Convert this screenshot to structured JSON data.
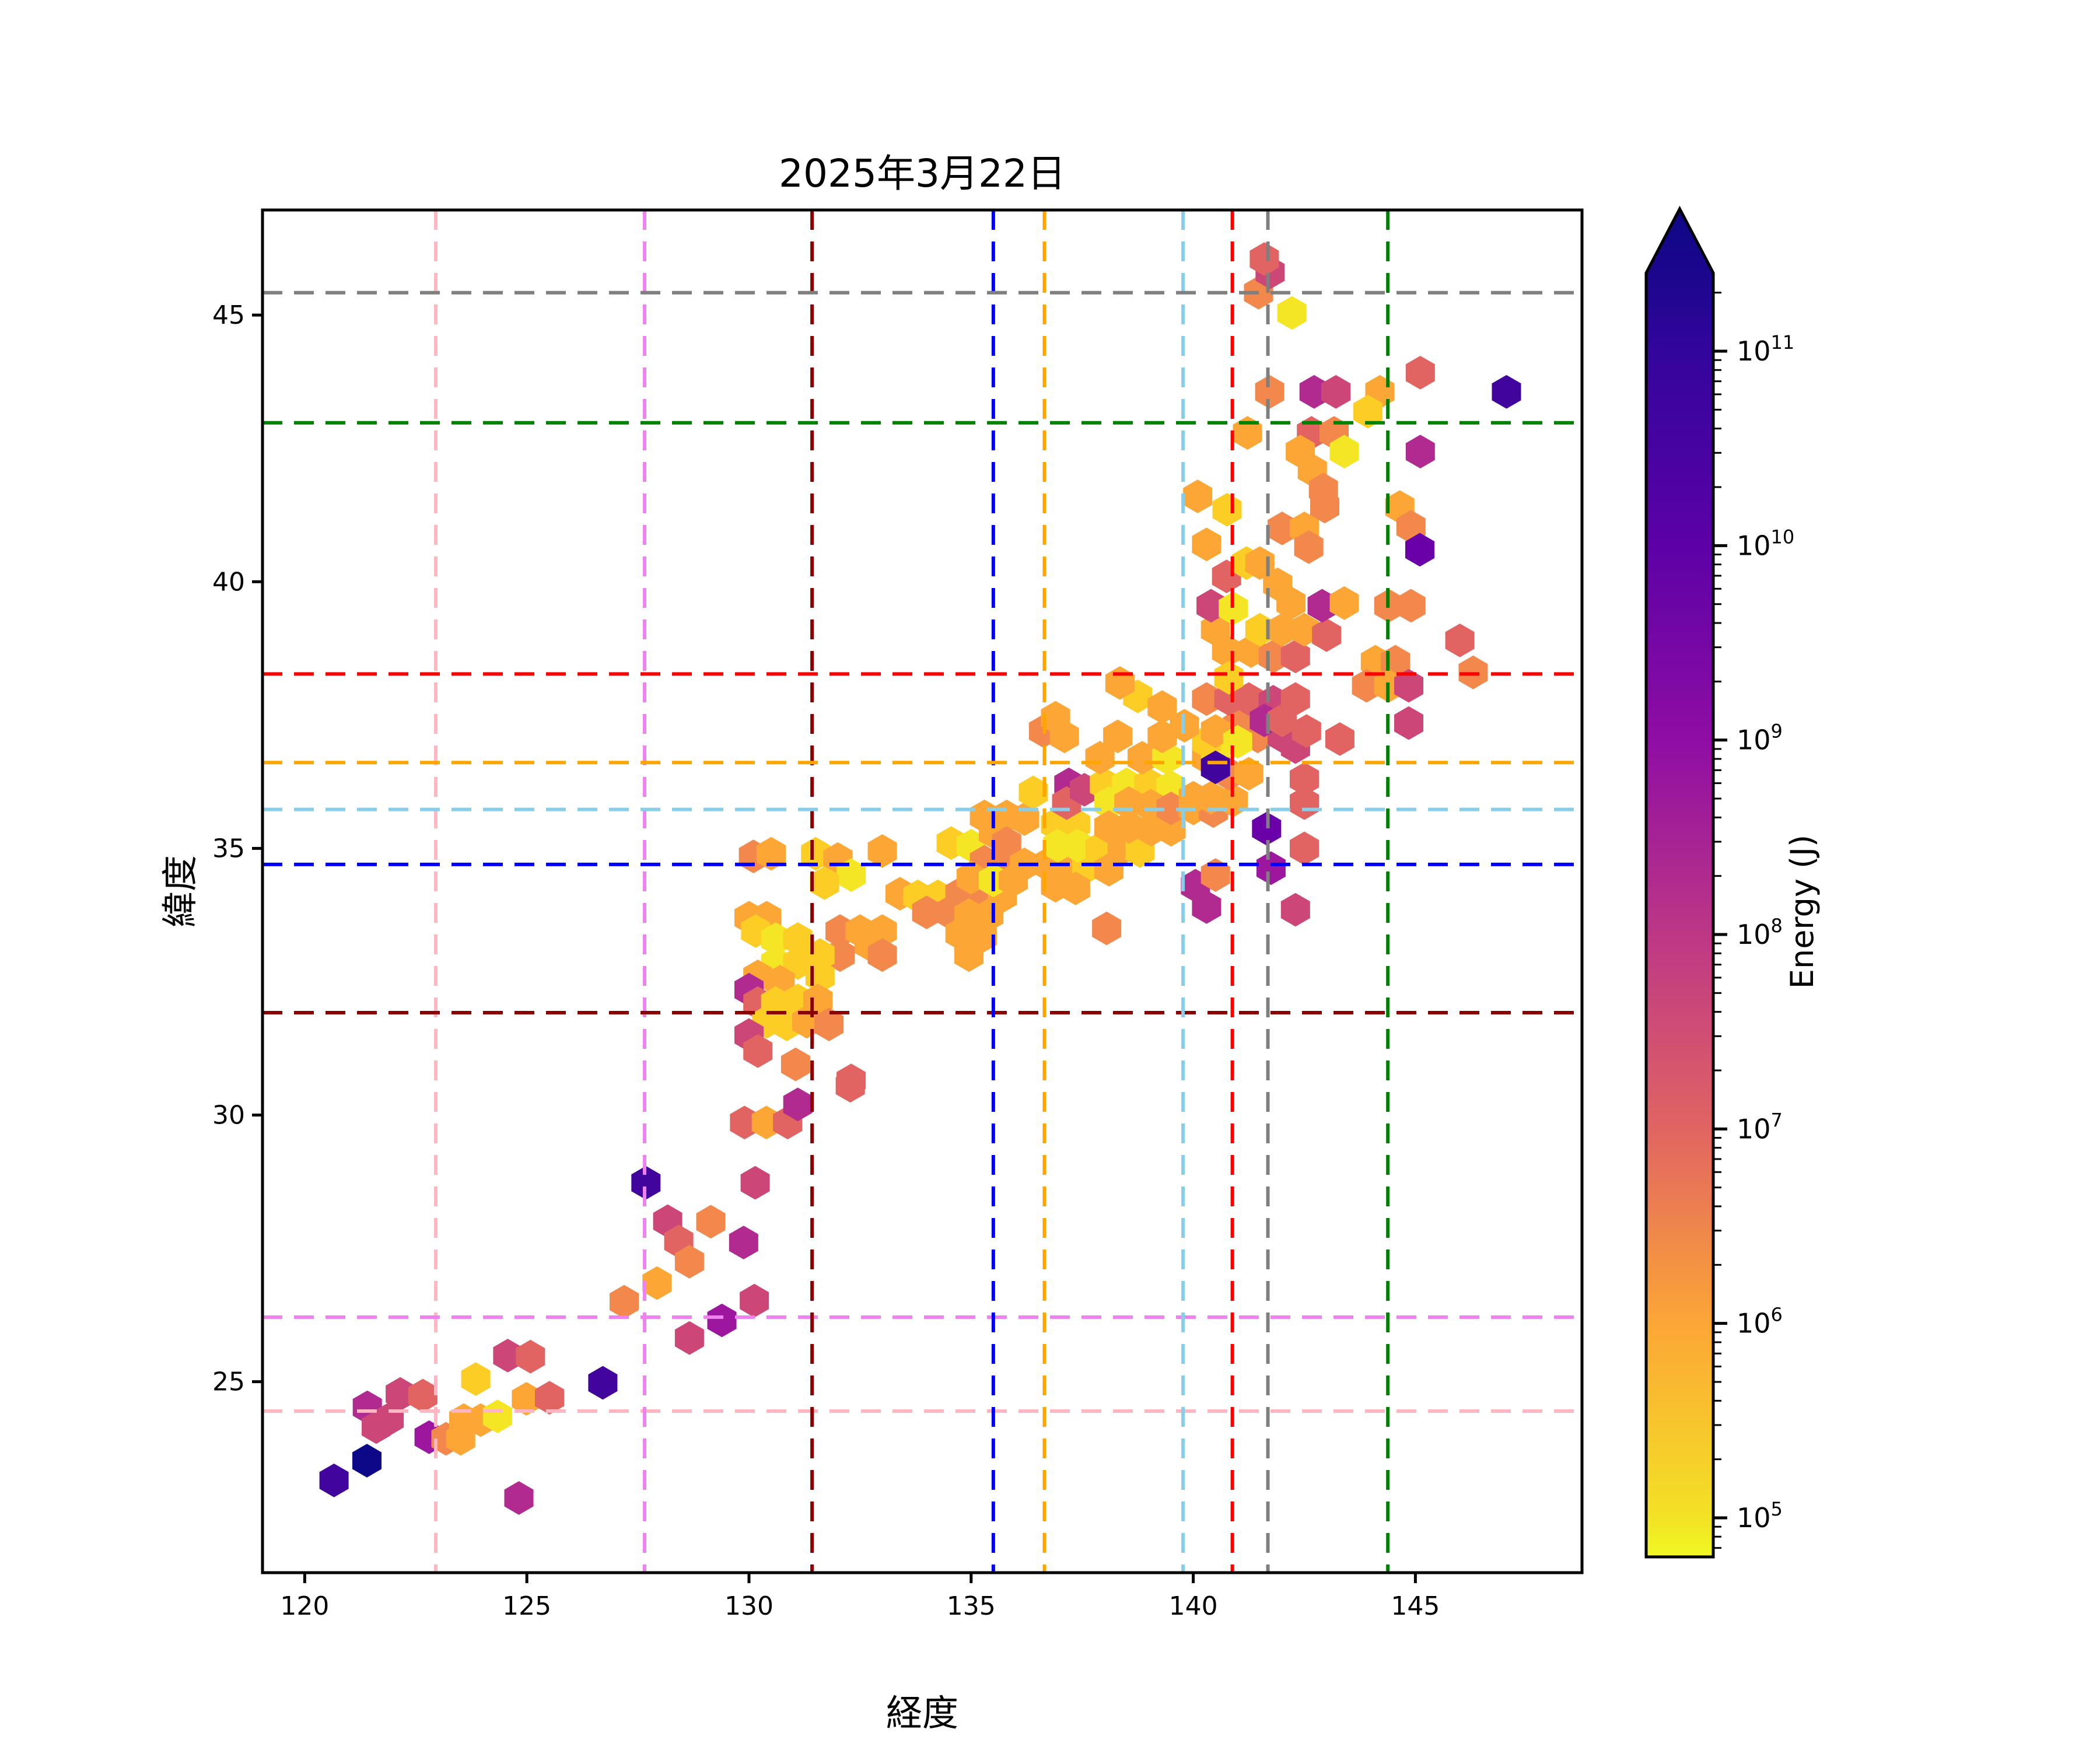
{
  "title": "2025年3月22日",
  "chart_data": {
    "type": "scatter",
    "marker": "hexagon",
    "title": "2025年3月22日",
    "xlabel": "経度",
    "ylabel": "緯度",
    "xlim": [
      119.05,
      148.75
    ],
    "ylim": [
      21.42,
      46.97
    ],
    "xticks": [
      120,
      125,
      130,
      135,
      140,
      145
    ],
    "yticks": [
      25,
      30,
      35,
      40,
      45
    ],
    "grid": false,
    "colorbar": {
      "label": "Energy (J)",
      "scale": "log",
      "colormap": "plasma_r",
      "extend": "max",
      "tick_exponents": [
        11,
        10,
        9,
        8,
        7,
        6,
        5
      ],
      "gradient_stops": [
        {
          "off": 0.0,
          "color": "#0d0887"
        },
        {
          "off": 0.048,
          "color": "#1b068d"
        },
        {
          "off": 0.106,
          "color": "#33059c"
        },
        {
          "off": 0.25,
          "color": "#5c01a6"
        },
        {
          "off": 0.394,
          "color": "#8f0da4"
        },
        {
          "off": 0.538,
          "color": "#bd3786"
        },
        {
          "off": 0.682,
          "color": "#e16462"
        },
        {
          "off": 0.827,
          "color": "#fca636"
        },
        {
          "off": 0.971,
          "color": "#f3e225"
        },
        {
          "off": 1.0,
          "color": "#f0f921"
        }
      ]
    },
    "palette": {
      "y0": "#f4e625",
      "y1": "#fcce25",
      "o0": "#fca636",
      "o1": "#f2884b",
      "s0": "#e16462",
      "p0": "#cc4778",
      "m0": "#b02a90",
      "v0": "#9c179e",
      "v1": "#6a00a8",
      "b0": "#41049d",
      "b1": "#0d0887"
    },
    "reference_lines": [
      {
        "color": "#ffb6c1",
        "lon": 122.95,
        "lat": 24.45
      },
      {
        "color": "#ee82ee",
        "lon": 127.65,
        "lat": 26.21
      },
      {
        "color": "#8b0000",
        "lon": 131.42,
        "lat": 31.92
      },
      {
        "color": "#0000ff",
        "lon": 135.5,
        "lat": 34.7
      },
      {
        "color": "#ffa500",
        "lon": 136.65,
        "lat": 36.61
      },
      {
        "color": "#87ceeb",
        "lon": 139.77,
        "lat": 35.73
      },
      {
        "color": "#ff0000",
        "lon": 140.88,
        "lat": 38.27
      },
      {
        "color": "#7f7f7f",
        "lon": 141.68,
        "lat": 45.42
      },
      {
        "color": "#008000",
        "lon": 144.38,
        "lat": 42.98
      }
    ],
    "points": [
      [
        120.66,
        23.15,
        "b0"
      ],
      [
        121.4,
        23.52,
        "b1"
      ],
      [
        121.41,
        24.52,
        "m0"
      ],
      [
        121.61,
        24.15,
        "p0"
      ],
      [
        121.9,
        24.3,
        "p0"
      ],
      [
        122.15,
        24.77,
        "p0"
      ],
      [
        122.66,
        24.74,
        "s0"
      ],
      [
        122.8,
        23.96,
        "v0"
      ],
      [
        123.18,
        23.93,
        "o1"
      ],
      [
        123.51,
        23.93,
        "o0"
      ],
      [
        123.58,
        24.28,
        "o0"
      ],
      [
        123.96,
        24.28,
        "o0"
      ],
      [
        123.85,
        25.05,
        "y1"
      ],
      [
        124.34,
        24.35,
        "y0"
      ],
      [
        124.57,
        25.49,
        "p0"
      ],
      [
        125.08,
        25.47,
        "s0"
      ],
      [
        124.99,
        24.68,
        "o0"
      ],
      [
        125.51,
        24.7,
        "s0"
      ],
      [
        124.82,
        22.82,
        "m0"
      ],
      [
        126.71,
        24.98,
        "b0"
      ],
      [
        127.19,
        26.5,
        "o1"
      ],
      [
        127.68,
        28.73,
        "b0"
      ],
      [
        127.93,
        26.85,
        "o0"
      ],
      [
        128.17,
        28.01,
        "p0"
      ],
      [
        128.42,
        27.63,
        "s0"
      ],
      [
        128.66,
        27.25,
        "o1"
      ],
      [
        128.66,
        25.82,
        "p0"
      ],
      [
        129.14,
        28.0,
        "o1"
      ],
      [
        129.39,
        26.15,
        "v0"
      ],
      [
        129.88,
        27.61,
        "m0"
      ],
      [
        129.9,
        29.86,
        "s0"
      ],
      [
        130.12,
        26.52,
        "p0"
      ],
      [
        130.14,
        28.73,
        "p0"
      ],
      [
        130.39,
        29.86,
        "o0"
      ],
      [
        130.87,
        29.86,
        "s0"
      ],
      [
        131.1,
        30.2,
        "m0"
      ],
      [
        132.28,
        30.55,
        "s0"
      ],
      [
        130.1,
        34.85,
        "o1"
      ],
      [
        130.5,
        34.9,
        "o0"
      ],
      [
        131.5,
        34.9,
        "y1"
      ],
      [
        132.0,
        34.8,
        "o0"
      ],
      [
        132.3,
        34.5,
        "y0"
      ],
      [
        131.7,
        34.35,
        "y1"
      ],
      [
        133.0,
        34.95,
        "o0"
      ],
      [
        130.0,
        33.7,
        "o0"
      ],
      [
        130.4,
        33.7,
        "o0"
      ],
      [
        130.15,
        33.45,
        "y1"
      ],
      [
        130.6,
        33.3,
        "y0"
      ],
      [
        131.1,
        33.3,
        "y1"
      ],
      [
        132.05,
        33.45,
        "o1"
      ],
      [
        132.5,
        33.45,
        "o0"
      ],
      [
        133.0,
        33.45,
        "o0"
      ],
      [
        132.7,
        33.2,
        "o0"
      ],
      [
        132.05,
        33.0,
        "o1"
      ],
      [
        133.0,
        33.0,
        "o1"
      ],
      [
        131.6,
        33.0,
        "y1"
      ],
      [
        130.6,
        32.85,
        "y0"
      ],
      [
        131.1,
        32.85,
        "y1"
      ],
      [
        130.2,
        32.6,
        "o0"
      ],
      [
        130.7,
        32.5,
        "o0"
      ],
      [
        131.6,
        32.6,
        "y1"
      ],
      [
        130.0,
        32.35,
        "m0"
      ],
      [
        130.2,
        32.1,
        "s0"
      ],
      [
        130.6,
        32.1,
        "y1"
      ],
      [
        131.1,
        32.15,
        "y1"
      ],
      [
        131.55,
        32.15,
        "o0"
      ],
      [
        130.4,
        31.75,
        "y1"
      ],
      [
        130.85,
        31.7,
        "y1"
      ],
      [
        131.3,
        31.75,
        "o0"
      ],
      [
        131.8,
        31.7,
        "o1"
      ],
      [
        130.0,
        31.5,
        "p0"
      ],
      [
        130.2,
        31.2,
        "s0"
      ],
      [
        131.05,
        30.95,
        "o1"
      ],
      [
        132.3,
        30.65,
        "s0"
      ],
      [
        133.4,
        34.15,
        "o0"
      ],
      [
        133.8,
        34.1,
        "y1"
      ],
      [
        134.25,
        34.1,
        "y1"
      ],
      [
        134.55,
        35.1,
        "y1"
      ],
      [
        135.0,
        35.05,
        "y0"
      ],
      [
        134.75,
        34.15,
        "o1"
      ],
      [
        135.25,
        34.1,
        "o1"
      ],
      [
        135.7,
        34.1,
        "o0"
      ],
      [
        134.0,
        33.8,
        "o1"
      ],
      [
        134.5,
        33.8,
        "o1"
      ],
      [
        134.95,
        33.75,
        "o0"
      ],
      [
        135.4,
        33.75,
        "o0"
      ],
      [
        134.75,
        33.4,
        "o0"
      ],
      [
        135.25,
        33.35,
        "o0"
      ],
      [
        134.95,
        33.0,
        "o0"
      ],
      [
        135.3,
        35.6,
        "o0"
      ],
      [
        135.8,
        35.6,
        "o0"
      ],
      [
        136.2,
        35.55,
        "o0"
      ],
      [
        135.5,
        35.3,
        "o0"
      ],
      [
        135.8,
        35.1,
        "o1"
      ],
      [
        135.3,
        34.75,
        "o1"
      ],
      [
        135.75,
        34.7,
        "o1"
      ],
      [
        136.2,
        34.7,
        "o0"
      ],
      [
        135.0,
        34.45,
        "o0"
      ],
      [
        135.5,
        34.4,
        "y0"
      ],
      [
        135.95,
        34.4,
        "o0"
      ],
      [
        136.4,
        36.05,
        "y1"
      ],
      [
        136.63,
        37.2,
        "o1"
      ],
      [
        136.9,
        37.45,
        "o0"
      ],
      [
        137.1,
        37.1,
        "o0"
      ],
      [
        137.2,
        36.2,
        "m0"
      ],
      [
        136.9,
        35.45,
        "y1"
      ],
      [
        137.35,
        35.45,
        "y1"
      ],
      [
        137.15,
        35.85,
        "s0"
      ],
      [
        137.55,
        36.1,
        "p0"
      ],
      [
        136.7,
        34.7,
        "o0"
      ],
      [
        137.15,
        34.65,
        "o0"
      ],
      [
        137.6,
        34.65,
        "y1"
      ],
      [
        136.95,
        35.05,
        "y0"
      ],
      [
        137.4,
        35.05,
        "y0"
      ],
      [
        137.9,
        35.0,
        "y1"
      ],
      [
        138.4,
        35.0,
        "o0"
      ],
      [
        138.8,
        34.95,
        "y1"
      ],
      [
        138.1,
        34.6,
        "o0"
      ],
      [
        136.9,
        34.3,
        "o0"
      ],
      [
        137.35,
        34.25,
        "o0"
      ],
      [
        138.05,
        33.5,
        "o1"
      ],
      [
        138.0,
        36.2,
        "y1"
      ],
      [
        138.5,
        36.2,
        "y0"
      ],
      [
        139.0,
        36.2,
        "y1"
      ],
      [
        139.5,
        36.15,
        "y0"
      ],
      [
        138.1,
        35.85,
        "y0"
      ],
      [
        138.55,
        35.85,
        "o0"
      ],
      [
        139.05,
        35.8,
        "o0"
      ],
      [
        138.1,
        35.4,
        "o0"
      ],
      [
        138.55,
        35.4,
        "o0"
      ],
      [
        139.05,
        35.35,
        "o0"
      ],
      [
        139.5,
        35.35,
        "o0"
      ],
      [
        139.5,
        35.75,
        "o1"
      ],
      [
        140.0,
        35.75,
        "o0"
      ],
      [
        140.45,
        35.7,
        "o1"
      ],
      [
        140.0,
        35.95,
        "o0"
      ],
      [
        140.4,
        35.95,
        "o0"
      ],
      [
        140.9,
        35.9,
        "o0"
      ],
      [
        137.9,
        36.7,
        "o0"
      ],
      [
        138.3,
        37.1,
        "o0"
      ],
      [
        138.85,
        36.7,
        "o0"
      ],
      [
        139.4,
        36.7,
        "y0"
      ],
      [
        139.3,
        37.1,
        "o0"
      ],
      [
        140.3,
        36.7,
        "o0"
      ],
      [
        140.5,
        36.8,
        "y0"
      ],
      [
        140.3,
        37.0,
        "y1"
      ],
      [
        140.8,
        36.4,
        "o1"
      ],
      [
        141.25,
        36.4,
        "o0"
      ],
      [
        140.5,
        36.52,
        "b0"
      ],
      [
        141.0,
        37.3,
        "o1"
      ],
      [
        141.45,
        37.1,
        "o1"
      ],
      [
        142.0,
        37.1,
        "p0"
      ],
      [
        142.3,
        36.9,
        "p0"
      ],
      [
        143.3,
        37.05,
        "s0"
      ],
      [
        142.5,
        36.3,
        "s0"
      ],
      [
        142.5,
        35.85,
        "s0"
      ],
      [
        141.65,
        35.37,
        "v1"
      ],
      [
        142.5,
        35.0,
        "s0"
      ],
      [
        141.75,
        34.63,
        "v0"
      ],
      [
        140.05,
        34.3,
        "m0"
      ],
      [
        140.3,
        33.9,
        "m0"
      ],
      [
        140.5,
        34.5,
        "o1"
      ],
      [
        142.3,
        33.85,
        "p0"
      ],
      [
        138.75,
        37.85,
        "y1"
      ],
      [
        138.35,
        38.1,
        "o0"
      ],
      [
        139.3,
        37.65,
        "o0"
      ],
      [
        139.8,
        37.3,
        "o0"
      ],
      [
        140.3,
        37.8,
        "o1"
      ],
      [
        140.8,
        37.8,
        "s0"
      ],
      [
        141.25,
        37.8,
        "s0"
      ],
      [
        141.8,
        37.75,
        "p0"
      ],
      [
        142.3,
        37.8,
        "s0"
      ],
      [
        140.5,
        37.2,
        "o0"
      ],
      [
        141.0,
        37.0,
        "y0"
      ],
      [
        141.6,
        37.4,
        "m0"
      ],
      [
        142.0,
        37.4,
        "s0"
      ],
      [
        142.55,
        37.2,
        "s0"
      ],
      [
        140.75,
        38.7,
        "o0"
      ],
      [
        141.3,
        38.7,
        "o0"
      ],
      [
        141.8,
        38.6,
        "o1"
      ],
      [
        142.3,
        38.6,
        "s0"
      ],
      [
        140.8,
        38.2,
        "y1"
      ],
      [
        144.1,
        38.5,
        "o0"
      ],
      [
        144.55,
        38.5,
        "o1"
      ],
      [
        143.9,
        38.05,
        "o1"
      ],
      [
        144.4,
        38.05,
        "o0"
      ],
      [
        144.85,
        38.05,
        "p0"
      ],
      [
        144.85,
        37.35,
        "p0"
      ],
      [
        140.5,
        39.1,
        "o0"
      ],
      [
        141.5,
        39.1,
        "y1"
      ],
      [
        142.0,
        39.1,
        "o0"
      ],
      [
        142.5,
        39.1,
        "o0"
      ],
      [
        143.0,
        39.0,
        "s0"
      ],
      [
        140.4,
        39.55,
        "p0"
      ],
      [
        140.9,
        39.5,
        "y0"
      ],
      [
        141.9,
        39.95,
        "o0"
      ],
      [
        142.2,
        39.6,
        "o0"
      ],
      [
        142.9,
        39.55,
        "m0"
      ],
      [
        143.4,
        39.6,
        "o0"
      ],
      [
        144.4,
        39.55,
        "o1"
      ],
      [
        144.9,
        39.55,
        "o1"
      ],
      [
        140.75,
        40.1,
        "s0"
      ],
      [
        140.3,
        40.7,
        "o0"
      ],
      [
        141.2,
        40.35,
        "y1"
      ],
      [
        141.5,
        40.35,
        "o0"
      ],
      [
        140.76,
        41.35,
        "y1"
      ],
      [
        142.0,
        41.0,
        "o1"
      ],
      [
        142.5,
        41.0,
        "o0"
      ],
      [
        142.6,
        40.65,
        "o1"
      ],
      [
        144.65,
        41.4,
        "o0"
      ],
      [
        144.9,
        41.03,
        "o1"
      ],
      [
        145.1,
        40.6,
        "v1"
      ],
      [
        146.0,
        38.9,
        "s0"
      ],
      [
        146.3,
        38.3,
        "o1"
      ],
      [
        140.1,
        41.6,
        "o0"
      ],
      [
        142.96,
        41.41,
        "o1"
      ],
      [
        141.22,
        42.79,
        "o0"
      ],
      [
        142.66,
        42.79,
        "s0"
      ],
      [
        143.17,
        42.79,
        "o1"
      ],
      [
        142.41,
        42.44,
        "o0"
      ],
      [
        143.4,
        42.44,
        "y0"
      ],
      [
        142.68,
        42.09,
        "o0"
      ],
      [
        142.93,
        41.73,
        "o1"
      ],
      [
        145.11,
        42.44,
        "m0"
      ],
      [
        141.72,
        43.56,
        "o1"
      ],
      [
        142.72,
        43.56,
        "m0"
      ],
      [
        143.21,
        43.56,
        "p0"
      ],
      [
        144.2,
        43.56,
        "o0"
      ],
      [
        143.93,
        43.19,
        "y1"
      ],
      [
        145.11,
        43.92,
        "s0"
      ],
      [
        147.05,
        43.56,
        "b0"
      ],
      [
        141.47,
        45.42,
        "o1"
      ],
      [
        141.73,
        45.8,
        "p0"
      ],
      [
        141.6,
        46.05,
        "s0"
      ],
      [
        142.22,
        45.04,
        "y0"
      ]
    ]
  }
}
